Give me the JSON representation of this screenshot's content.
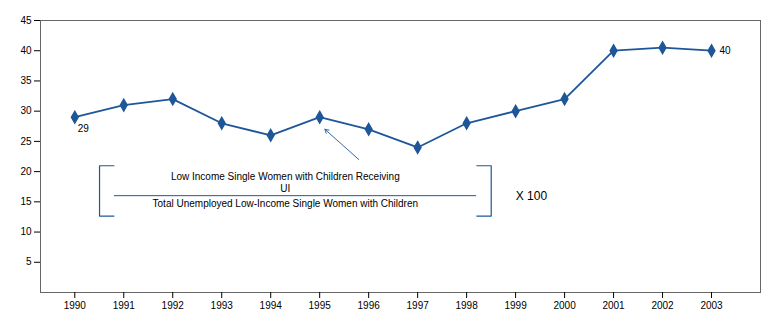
{
  "chart_data": {
    "type": "line",
    "x": [
      1990,
      1991,
      1992,
      1993,
      1994,
      1995,
      1996,
      1997,
      1998,
      1999,
      2000,
      2001,
      2002,
      2003
    ],
    "values": [
      29,
      31,
      32,
      28,
      26,
      29,
      27,
      24,
      28,
      30,
      32,
      40,
      40.5,
      40
    ],
    "color": "#1e5799",
    "marker": "diamond",
    "xlim": [
      1989.3,
      2004.0
    ],
    "xticks": [
      1990,
      1991,
      1992,
      1993,
      1994,
      1995,
      1996,
      1997,
      1998,
      1999,
      2000,
      2001,
      2002,
      2003
    ],
    "ylim": [
      0,
      45
    ],
    "yticks": [
      5,
      10,
      15,
      20,
      25,
      30,
      35,
      40,
      45
    ],
    "grid": false,
    "annotations": [
      {
        "text": "29",
        "x": 1990,
        "y": 29
      },
      {
        "text": "40",
        "x": 2003,
        "y": 40
      }
    ],
    "formula": {
      "numerator": [
        "Low Income Single Women with Children Receiving",
        "UI"
      ],
      "denominator": "Total Unemployed Low-Income Single Women with Children",
      "multiplier": "X 100"
    }
  }
}
